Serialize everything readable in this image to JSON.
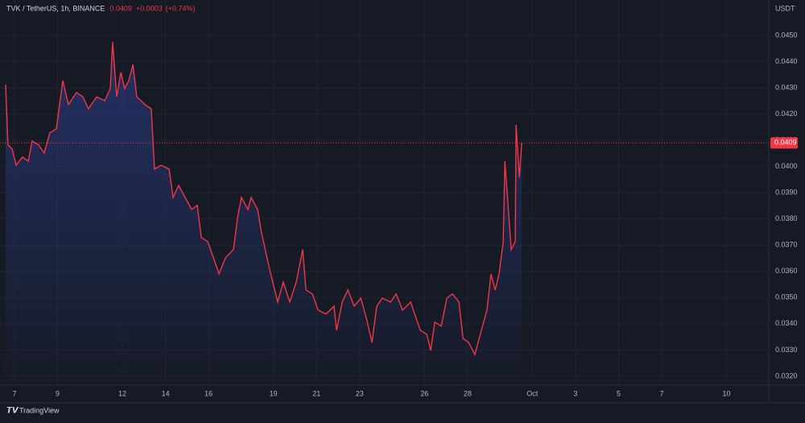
{
  "chart_data": {
    "type": "area",
    "title": "TVK / TetherUS, 1h, BINANCE",
    "quote": {
      "change": "+0.0003",
      "change_percent": "(+0.74%)"
    },
    "last_price": {
      "value": 0.0409,
      "label": "0.0409"
    },
    "currency": "USDT",
    "brand": "TradingView",
    "color": "#f23645",
    "area_color": "#2a3a80",
    "grid": true,
    "xlim": [
      6.33,
      41.96
    ],
    "ylim": [
      0.03166,
      0.04635
    ],
    "xticks": [
      7,
      9,
      12,
      14,
      16,
      19,
      21,
      23,
      26,
      28,
      {
        "value": 31,
        "label": "Oct"
      },
      {
        "value": 33,
        "label": "3"
      },
      {
        "value": 35,
        "label": "5"
      },
      {
        "value": 37,
        "label": "7"
      },
      {
        "value": 40,
        "label": "10"
      }
    ],
    "yticks": [
      {
        "value": 0.032,
        "label": "0.0320"
      },
      {
        "value": 0.033,
        "label": "0.0330"
      },
      {
        "value": 0.034,
        "label": "0.0340"
      },
      {
        "value": 0.035,
        "label": "0.0350"
      },
      {
        "value": 0.036,
        "label": "0.0360"
      },
      {
        "value": 0.037,
        "label": "0.0370"
      },
      {
        "value": 0.038,
        "label": "0.0380"
      },
      {
        "value": 0.039,
        "label": "0.0390"
      },
      {
        "value": 0.04,
        "label": "0.0400"
      },
      {
        "value": 0.041,
        "label": "0.0410"
      },
      {
        "value": 0.042,
        "label": "0.0420"
      },
      {
        "value": 0.043,
        "label": "0.0430"
      },
      {
        "value": 0.044,
        "label": "0.0440"
      },
      {
        "value": 0.045,
        "label": "0.0450"
      }
    ],
    "x": [
      6.59,
      6.7,
      6.89,
      7.08,
      7.37,
      7.64,
      7.82,
      8.12,
      8.38,
      8.64,
      8.94,
      9.24,
      9.5,
      9.87,
      10.17,
      10.43,
      10.81,
      11.18,
      11.44,
      11.55,
      11.74,
      11.93,
      12.11,
      12.3,
      12.49,
      12.67,
      13.05,
      13.34,
      13.49,
      13.79,
      14.17,
      14.35,
      14.61,
      14.91,
      15.21,
      15.47,
      15.66,
      15.96,
      16.22,
      16.48,
      16.78,
      17.15,
      17.34,
      17.52,
      17.82,
      17.97,
      18.27,
      18.46,
      18.83,
      19.2,
      19.46,
      19.76,
      20.06,
      20.36,
      20.51,
      20.81,
      21.07,
      21.44,
      21.81,
      21.93,
      22.19,
      22.45,
      22.75,
      23.05,
      23.31,
      23.57,
      23.79,
      24.05,
      24.43,
      24.69,
      24.99,
      25.36,
      25.55,
      25.81,
      26.11,
      26.29,
      26.48,
      26.78,
      27.04,
      27.3,
      27.6,
      27.79,
      28.05,
      28.34,
      28.64,
      28.9,
      29.09,
      29.28,
      29.46,
      29.65,
      29.73,
      29.84,
      30.02,
      30.21,
      30.25,
      30.4,
      30.51
    ],
    "values": [
      0.04313,
      0.04082,
      0.04067,
      0.04005,
      0.04036,
      0.0402,
      0.04097,
      0.04082,
      0.04051,
      0.04128,
      0.04144,
      0.04328,
      0.04236,
      0.04282,
      0.04266,
      0.0422,
      0.04266,
      0.04251,
      0.04297,
      0.04475,
      0.04266,
      0.04359,
      0.04297,
      0.04328,
      0.04389,
      0.04266,
      0.04236,
      0.0422,
      0.0399,
      0.04005,
      0.0399,
      0.03882,
      0.03928,
      0.03882,
      0.03836,
      0.03852,
      0.03729,
      0.03713,
      0.03652,
      0.0359,
      0.03652,
      0.03683,
      0.03805,
      0.03882,
      0.03836,
      0.03882,
      0.03836,
      0.03744,
      0.03606,
      0.03483,
      0.03559,
      0.03483,
      0.03559,
      0.03683,
      0.03529,
      0.03514,
      0.03452,
      0.03437,
      0.03467,
      0.03375,
      0.03483,
      0.03529,
      0.03467,
      0.03498,
      0.03421,
      0.03329,
      0.03467,
      0.03498,
      0.03483,
      0.03514,
      0.03452,
      0.03483,
      0.03437,
      0.03375,
      0.0336,
      0.03298,
      0.03406,
      0.03391,
      0.03498,
      0.03514,
      0.03483,
      0.03344,
      0.03329,
      0.03283,
      0.03375,
      0.03452,
      0.0359,
      0.03529,
      0.0359,
      0.03713,
      0.0402,
      0.03898,
      0.03683,
      0.03713,
      0.04159,
      0.03959,
      0.0409
    ]
  }
}
